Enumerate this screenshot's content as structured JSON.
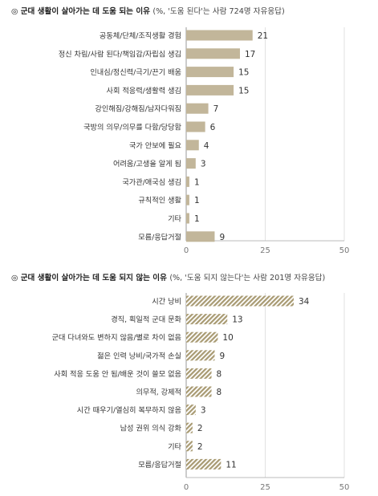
{
  "chart_data": [
    {
      "type": "bar",
      "orientation": "horizontal",
      "title": "◎  군대 생활이 살아가는 데 도움 되는 이유",
      "subtitle": "(%, '도움 된다'는 사람 724명 자유응답)",
      "categories": [
        "공동체/단체/조직생활 경험",
        "정신 차림/사람 된다/책임감/자립심 생김",
        "인내심/정신력/극기/끈기 배움",
        "사회 적응력/생활력 생김",
        "강인해짐/강해짐/남자다워짐",
        "국방의 의무/의무를 다함/당당함",
        "국가 안보에 필요",
        "어려움/고생을 알게 됨",
        "국가관/애국심 생김",
        "규칙적인 생활",
        "기타",
        "모름/응답거절"
      ],
      "values": [
        21,
        17,
        15,
        15,
        7,
        6,
        4,
        3,
        1,
        1,
        1,
        9
      ],
      "xlim": [
        0,
        50
      ],
      "xticks": [
        "0",
        "25",
        "50"
      ],
      "bar_color": "#c2b69a",
      "pattern": "solid"
    },
    {
      "type": "bar",
      "orientation": "horizontal",
      "title": "◎  군대 생활이 살아가는 데 도움 되지 않는 이유",
      "subtitle": "(%, '도움 되지 않는다'는 사람 201명 자유응답)",
      "categories": [
        "시간 낭비",
        "경직, 획일적 군대 문화",
        "군대 다녀와도 변하지 않음/별로 차이 없음",
        "젊은 인력 낭비/국가적 손실",
        "사회 적응 도움 안 됨/배운 것이 쓸모 없음",
        "의무적, 강제적",
        "시간 때우기/열심히 복무하지 않음",
        "남성 권위 의식 강화",
        "기타",
        "모름/응답거절"
      ],
      "values": [
        34,
        13,
        10,
        9,
        8,
        8,
        3,
        2,
        2,
        11
      ],
      "xlim": [
        0,
        50
      ],
      "xticks": [
        "0",
        "25",
        "50"
      ],
      "bar_color": "#a89a72",
      "pattern": "hatched"
    }
  ]
}
